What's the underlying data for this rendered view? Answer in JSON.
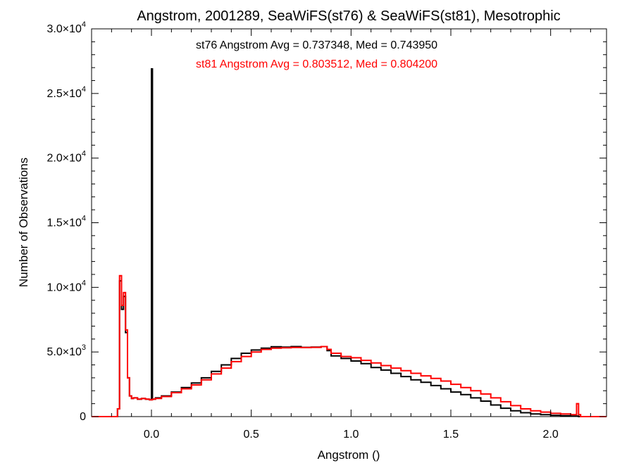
{
  "chart_data": {
    "type": "line",
    "step": true,
    "title": "Angstrom, 2001289, SeaWiFS(st76) & SeaWiFS(st81), Mesotrophic",
    "xlabel": "Angstrom ()",
    "ylabel": "Number of Observations",
    "xlim": [
      -0.3,
      2.28
    ],
    "ylim": [
      0,
      30000
    ],
    "grid": false,
    "x_ticks": [
      0.0,
      0.5,
      1.0,
      1.5,
      2.0
    ],
    "x_tick_labels": [
      "0.0",
      "0.5",
      "1.0",
      "1.5",
      "2.0"
    ],
    "y_ticks": [
      0,
      5000,
      10000,
      15000,
      20000,
      25000,
      30000
    ],
    "y_tick_labels": [
      {
        "base": "0",
        "exp": ""
      },
      {
        "base": "5.0×10",
        "exp": "3"
      },
      {
        "base": "1.0×10",
        "exp": "4"
      },
      {
        "base": "1.5×10",
        "exp": "4"
      },
      {
        "base": "2.0×10",
        "exp": "4"
      },
      {
        "base": "2.5×10",
        "exp": "4"
      },
      {
        "base": "3.0×10",
        "exp": "4"
      }
    ],
    "annotations": [
      {
        "text": "st76 Angstrom Avg = 0.737348, Med = 0.743950",
        "color": "#000000"
      },
      {
        "text": "st81 Angstrom Avg = 0.803512, Med = 0.804200",
        "color": "#ff0000"
      }
    ],
    "series": [
      {
        "color": "#000000",
        "x": [
          -0.3,
          -0.17,
          -0.16,
          -0.15,
          -0.14,
          -0.13,
          -0.12,
          -0.11,
          -0.1,
          -0.09,
          -0.07,
          -0.05,
          -0.03,
          -0.01,
          0.0,
          0.005,
          0.02,
          0.05,
          0.1,
          0.15,
          0.2,
          0.25,
          0.3,
          0.35,
          0.4,
          0.45,
          0.5,
          0.55,
          0.6,
          0.65,
          0.7,
          0.75,
          0.8,
          0.85,
          0.88,
          0.9,
          0.95,
          1.0,
          1.05,
          1.1,
          1.15,
          1.2,
          1.25,
          1.3,
          1.35,
          1.4,
          1.45,
          1.5,
          1.55,
          1.6,
          1.65,
          1.7,
          1.75,
          1.8,
          1.85,
          1.9,
          1.95,
          2.0,
          2.05,
          2.1,
          2.14,
          2.15,
          2.28
        ],
        "values": [
          0,
          600,
          10500,
          8300,
          9300,
          6500,
          3000,
          1600,
          1400,
          1450,
          1350,
          1400,
          1350,
          1300,
          26900,
          1350,
          1450,
          1600,
          1900,
          2250,
          2600,
          3000,
          3500,
          4000,
          4500,
          4900,
          5150,
          5300,
          5400,
          5380,
          5420,
          5360,
          5380,
          5420,
          5100,
          4700,
          4500,
          4300,
          4100,
          3800,
          3600,
          3350,
          3100,
          2850,
          2650,
          2400,
          2150,
          1900,
          1700,
          1450,
          1200,
          900,
          650,
          450,
          300,
          200,
          150,
          100,
          70,
          40,
          0,
          0,
          0
        ]
      },
      {
        "color": "#ff0000",
        "x": [
          -0.3,
          -0.17,
          -0.16,
          -0.15,
          -0.14,
          -0.13,
          -0.12,
          -0.11,
          -0.1,
          -0.09,
          -0.07,
          -0.05,
          -0.03,
          -0.01,
          0.0,
          0.005,
          0.02,
          0.05,
          0.1,
          0.15,
          0.2,
          0.25,
          0.3,
          0.35,
          0.4,
          0.45,
          0.5,
          0.55,
          0.6,
          0.65,
          0.7,
          0.75,
          0.8,
          0.85,
          0.88,
          0.9,
          0.95,
          1.0,
          1.05,
          1.1,
          1.15,
          1.2,
          1.25,
          1.3,
          1.35,
          1.4,
          1.45,
          1.5,
          1.55,
          1.6,
          1.65,
          1.7,
          1.75,
          1.8,
          1.85,
          1.9,
          1.95,
          2.0,
          2.05,
          2.1,
          2.13,
          2.14,
          2.15,
          2.28
        ],
        "values": [
          0,
          600,
          10900,
          8600,
          9600,
          6700,
          3000,
          1600,
          1400,
          1450,
          1350,
          1400,
          1350,
          1300,
          1300,
          1350,
          1400,
          1550,
          1850,
          2150,
          2450,
          2850,
          3300,
          3750,
          4250,
          4650,
          5000,
          5200,
          5300,
          5320,
          5350,
          5340,
          5360,
          5420,
          5200,
          4900,
          4650,
          4550,
          4350,
          4150,
          3950,
          3750,
          3550,
          3350,
          3150,
          2950,
          2750,
          2500,
          2250,
          2000,
          1750,
          1450,
          1150,
          850,
          600,
          450,
          350,
          250,
          200,
          150,
          1000,
          150,
          0,
          0
        ]
      }
    ]
  }
}
